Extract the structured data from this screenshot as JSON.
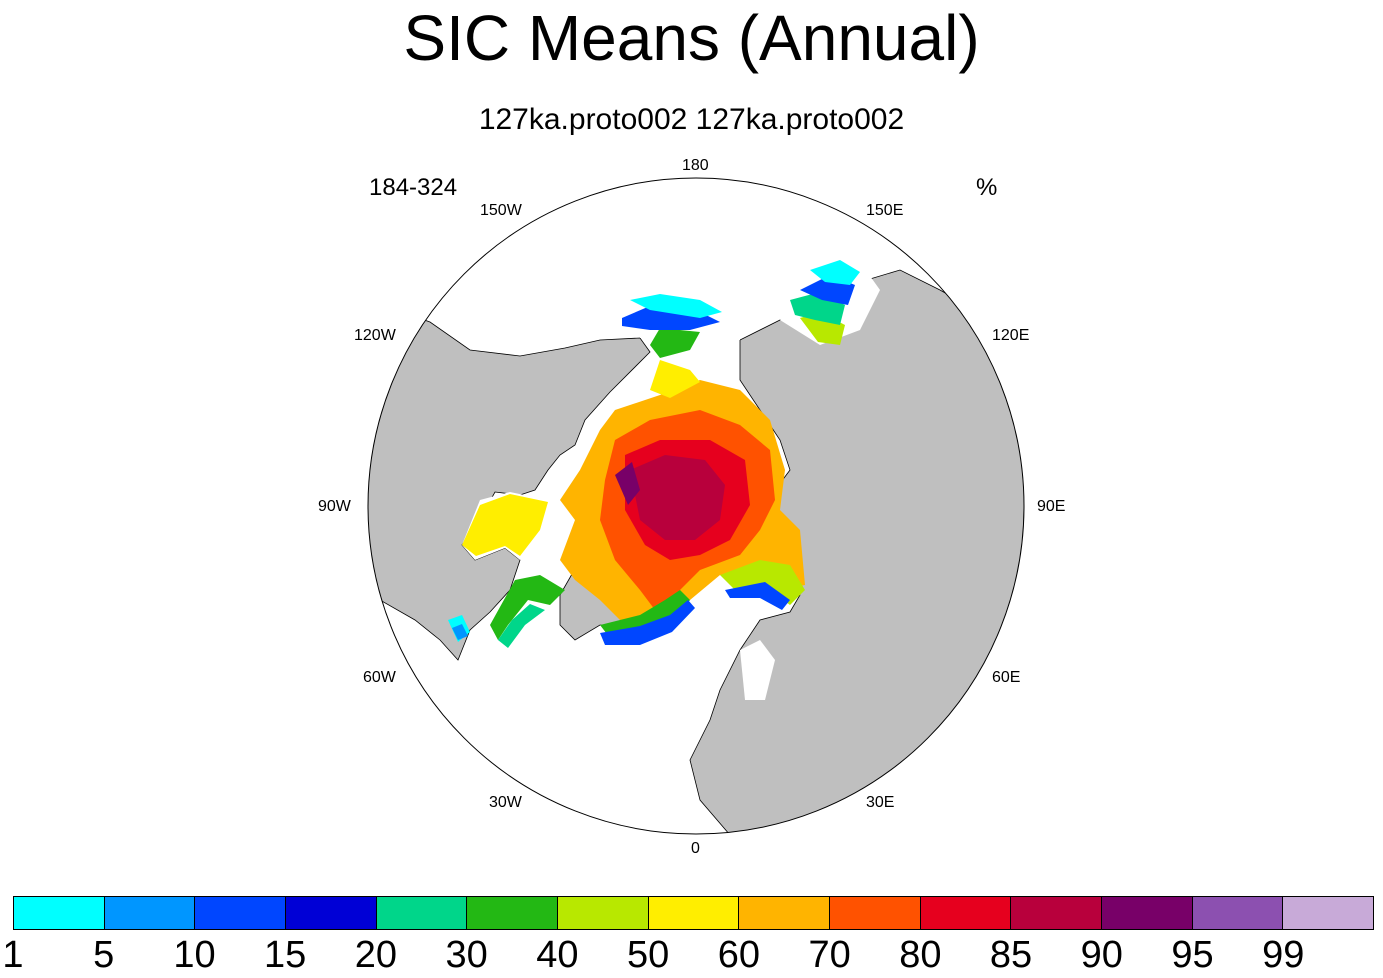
{
  "title": "SIC Means (Annual)",
  "subtitle": "127ka.proto002  127ka.proto002",
  "left_label": "184-324",
  "right_label": "%",
  "longitude_labels": {
    "lon_180": "180",
    "lon_150e": "150E",
    "lon_120e": "120E",
    "lon_90e": "90E",
    "lon_60e": "60E",
    "lon_30e": "30E",
    "lon_0": "0",
    "lon_30w": "30W",
    "lon_60w": "60W",
    "lon_90w": "90W",
    "lon_120w": "120W",
    "lon_150w": "150W"
  },
  "colors": {
    "land": "#bfbfbf",
    "ocean": "#ffffff",
    "colorbar": [
      "#00ffff",
      "#0096ff",
      "#0046ff",
      "#0000d6",
      "#00d68a",
      "#23b814",
      "#b8e800",
      "#ffee00",
      "#ffb400",
      "#ff5200",
      "#e6001e",
      "#b8003c",
      "#780068",
      "#8c50b0",
      "#c8aad8"
    ]
  },
  "colorbar_labels": [
    "1",
    "5",
    "10",
    "15",
    "20",
    "30",
    "40",
    "50",
    "60",
    "70",
    "80",
    "85",
    "90",
    "95",
    "99"
  ]
}
